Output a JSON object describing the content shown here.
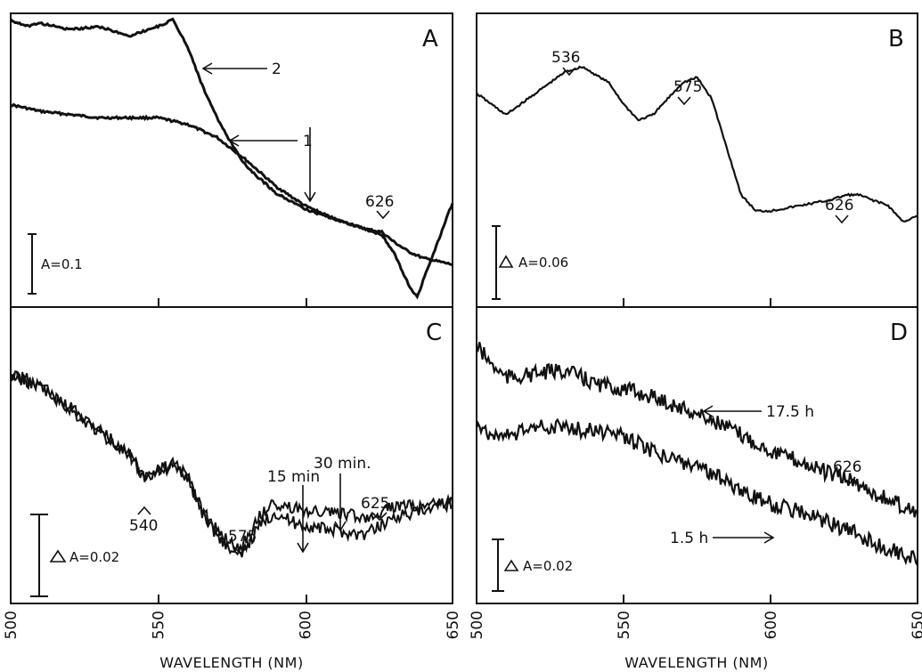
{
  "chart_data": [
    {
      "panel": "A",
      "type": "line",
      "xlim": [
        500,
        650
      ],
      "x_ticks": [],
      "series": [
        {
          "label": "1",
          "x": [
            500,
            510,
            520,
            530,
            540,
            550,
            560,
            570,
            580,
            590,
            600,
            610,
            620,
            626,
            630,
            635,
            640,
            645,
            650
          ],
          "y": [
            0.72,
            0.7,
            0.69,
            0.68,
            0.68,
            0.68,
            0.66,
            0.62,
            0.55,
            0.47,
            0.41,
            0.37,
            0.34,
            0.33,
            0.3,
            0.27,
            0.25,
            0.24,
            0.23
          ]
        },
        {
          "label": "2",
          "x": [
            500,
            505,
            510,
            520,
            530,
            540,
            550,
            555,
            560,
            565,
            570,
            575,
            580,
            590,
            600,
            610,
            620,
            626,
            630,
            635,
            638,
            640,
            645,
            650
          ],
          "y": [
            0.98,
            0.96,
            0.97,
            0.95,
            0.96,
            0.93,
            0.96,
            0.98,
            0.9,
            0.78,
            0.68,
            0.6,
            0.53,
            0.45,
            0.4,
            0.37,
            0.34,
            0.32,
            0.27,
            0.17,
            0.13,
            0.18,
            0.3,
            0.42
          ]
        }
      ],
      "arrow_labels": [
        "2",
        "1"
      ],
      "peak_labels": [
        "626"
      ],
      "scale_label": "A=0.1"
    },
    {
      "panel": "B",
      "type": "line",
      "xlim": [
        500,
        650
      ],
      "x_ticks": [],
      "series": [
        {
          "x": [
            500,
            505,
            510,
            515,
            520,
            525,
            530,
            536,
            545,
            550,
            555,
            560,
            565,
            570,
            575,
            580,
            585,
            590,
            595,
            600,
            610,
            620,
            626,
            630,
            640,
            645,
            650
          ],
          "y": [
            0.1,
            0.08,
            0.06,
            0.08,
            0.1,
            0.12,
            0.14,
            0.15,
            0.12,
            0.08,
            0.05,
            0.06,
            0.09,
            0.12,
            0.13,
            0.09,
            0.0,
            -0.09,
            -0.12,
            -0.12,
            -0.11,
            -0.1,
            -0.09,
            -0.09,
            -0.11,
            -0.14,
            -0.13
          ]
        }
      ],
      "peak_labels": [
        "536",
        "575",
        "626"
      ],
      "scale_label": "A=0.06"
    },
    {
      "panel": "C",
      "type": "line",
      "xlim": [
        500,
        650
      ],
      "x_ticks": [
        500,
        550,
        600,
        650
      ],
      "xlabel": "WAVELENGTH (NM)",
      "series": [
        {
          "label": "15 min",
          "x": [
            500,
            510,
            520,
            530,
            540,
            545,
            550,
            555,
            560,
            565,
            570,
            575,
            578,
            580,
            585,
            590,
            595,
            600,
            610,
            620,
            625,
            630,
            640,
            650
          ],
          "y": [
            0.08,
            0.075,
            0.065,
            0.055,
            0.045,
            0.035,
            0.038,
            0.04,
            0.035,
            0.02,
            0.01,
            0.003,
            0.0,
            0.005,
            0.015,
            0.02,
            0.016,
            0.014,
            0.012,
            0.01,
            0.014,
            0.018,
            0.02,
            0.024
          ]
        },
        {
          "label": "30 min",
          "x": [
            500,
            510,
            520,
            530,
            540,
            545,
            550,
            555,
            560,
            565,
            570,
            575,
            578,
            580,
            585,
            590,
            595,
            600,
            610,
            620,
            625,
            630,
            640,
            650
          ],
          "y": [
            0.081,
            0.076,
            0.066,
            0.056,
            0.046,
            0.036,
            0.039,
            0.041,
            0.036,
            0.021,
            0.012,
            0.006,
            0.004,
            0.009,
            0.019,
            0.024,
            0.022,
            0.021,
            0.02,
            0.018,
            0.02,
            0.022,
            0.023,
            0.025
          ]
        }
      ],
      "arrow_labels": [
        "30 min.",
        "15 min"
      ],
      "peak_labels": [
        "540",
        "575",
        "625"
      ],
      "scale_label": "A=0.02"
    },
    {
      "panel": "D",
      "type": "line",
      "xlim": [
        500,
        650
      ],
      "x_ticks": [
        500,
        550,
        600,
        650
      ],
      "xlabel": "WAVELENGTH (NM)",
      "series": [
        {
          "label": "17.5 h",
          "x": [
            500,
            505,
            510,
            520,
            530,
            540,
            550,
            560,
            570,
            580,
            590,
            600,
            610,
            620,
            626,
            630,
            640,
            650
          ],
          "y": [
            0.115,
            0.105,
            0.098,
            0.1,
            0.102,
            0.095,
            0.092,
            0.088,
            0.082,
            0.076,
            0.068,
            0.06,
            0.054,
            0.048,
            0.045,
            0.042,
            0.034,
            0.028
          ]
        },
        {
          "label": "1.5 h",
          "x": [
            500,
            505,
            510,
            520,
            530,
            540,
            550,
            560,
            570,
            580,
            590,
            600,
            610,
            620,
            630,
            640,
            650
          ],
          "y": [
            0.075,
            0.068,
            0.068,
            0.072,
            0.072,
            0.07,
            0.067,
            0.06,
            0.054,
            0.048,
            0.04,
            0.032,
            0.028,
            0.022,
            0.016,
            0.008,
            0.004
          ]
        }
      ],
      "arrow_labels": [
        "17.5 h",
        "1.5 h"
      ],
      "peak_labels": [
        "626"
      ],
      "scale_label": "A=0.02"
    }
  ]
}
